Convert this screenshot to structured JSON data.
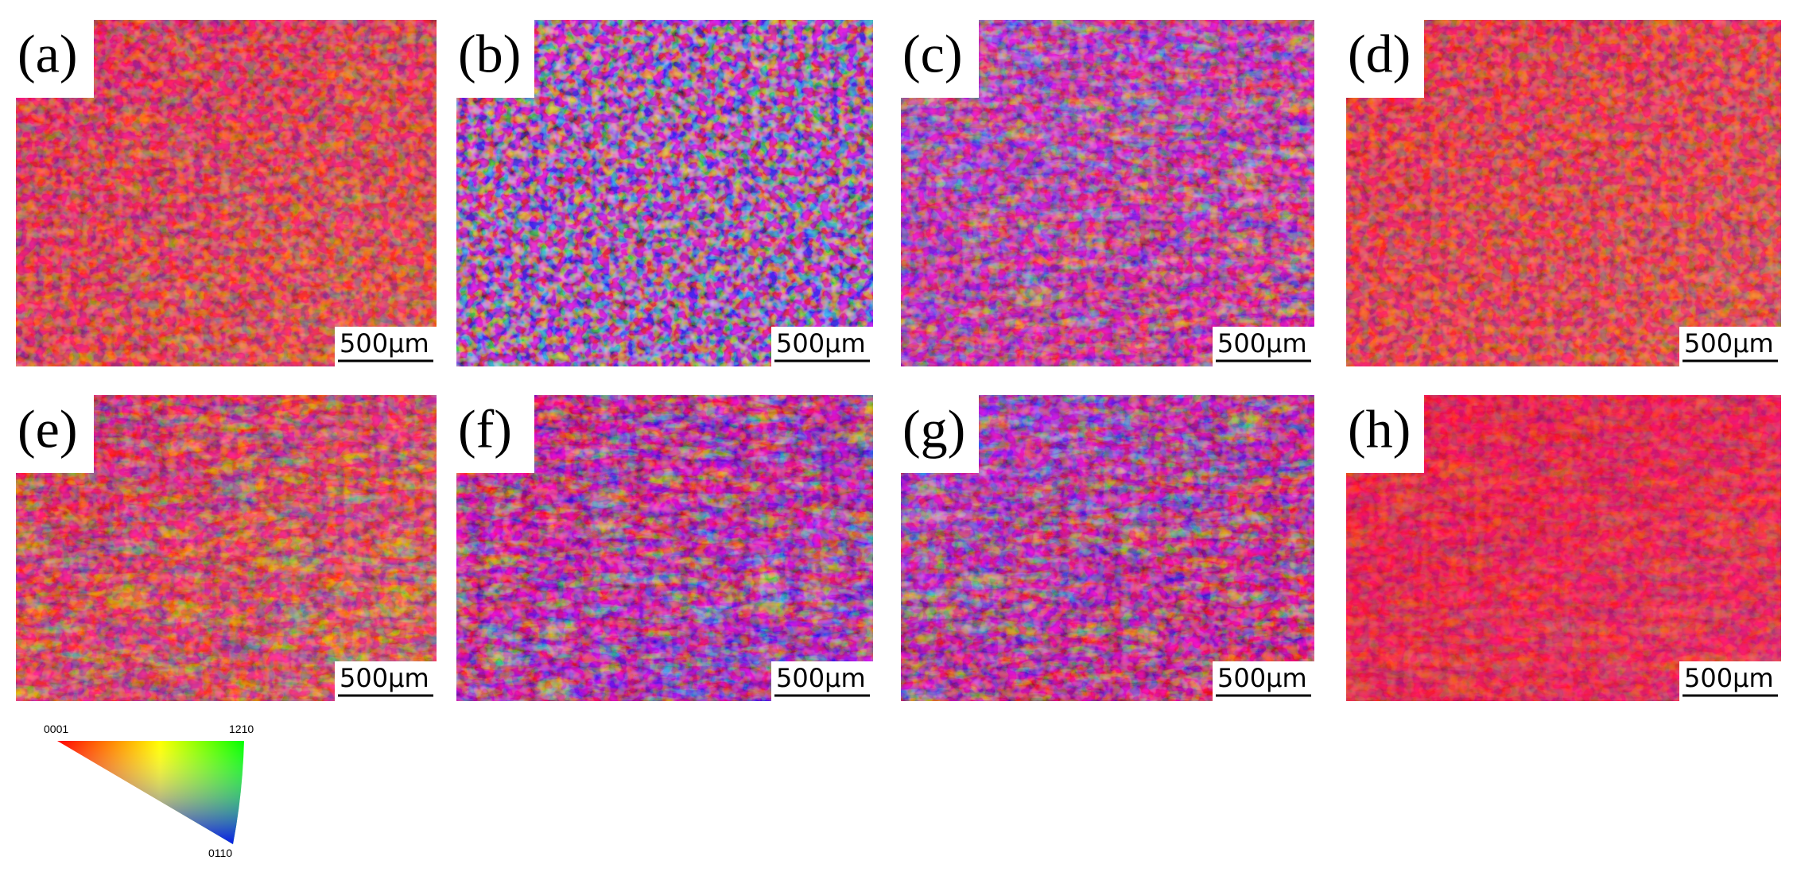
{
  "panels": [
    {
      "label": "(a)",
      "scale_bar": "500μm"
    },
    {
      "label": "(b)",
      "scale_bar": "500μm"
    },
    {
      "label": "(c)",
      "scale_bar": "500μm"
    },
    {
      "label": "(d)",
      "scale_bar": "500μm"
    },
    {
      "label": "(e)",
      "scale_bar": "500μm"
    },
    {
      "label": "(f)",
      "scale_bar": "500μm"
    },
    {
      "label": "(g)",
      "scale_bar": "500μm"
    },
    {
      "label": "(h)",
      "scale_bar": "500μm"
    }
  ],
  "legend": {
    "corner_0001": "0001",
    "corner_1210": "1210",
    "corner_0110": "0110"
  }
}
